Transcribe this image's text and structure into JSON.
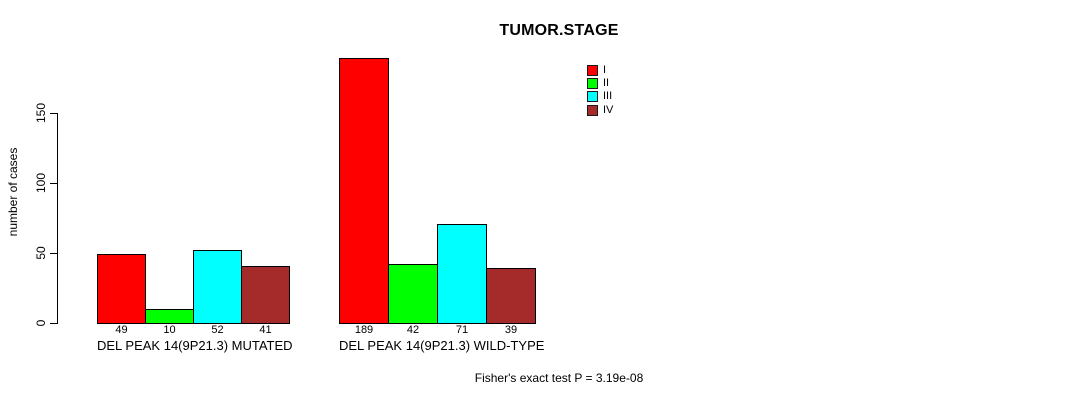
{
  "chart_data": {
    "type": "bar",
    "title": "TUMOR.STAGE",
    "xlabel": "",
    "ylabel": "number of cases",
    "ylim": [
      0,
      196
    ],
    "yticks": [
      "0",
      "50",
      "100",
      "150"
    ],
    "ytick_values": [
      0,
      50,
      100,
      150
    ],
    "grid": false,
    "legend_position": "top-right-inside",
    "categories": [
      "DEL PEAK 14(9P21.3) MUTATED",
      "DEL PEAK 14(9P21.3) WILD-TYPE"
    ],
    "series": [
      {
        "name": "I",
        "color": "#FF0000",
        "values": [
          49,
          189
        ]
      },
      {
        "name": "II",
        "color": "#00FF00",
        "values": [
          10,
          42
        ]
      },
      {
        "name": "III",
        "color": "#00FFFF",
        "values": [
          52,
          71
        ]
      },
      {
        "name": "IV",
        "color": "#A52A2A",
        "values": [
          41,
          39
        ]
      }
    ],
    "bar_value_labels": [
      [
        49,
        10,
        52,
        41
      ],
      [
        189,
        42,
        71,
        39
      ]
    ],
    "footnote": "Fisher's exact test P = 3.19e-08"
  }
}
